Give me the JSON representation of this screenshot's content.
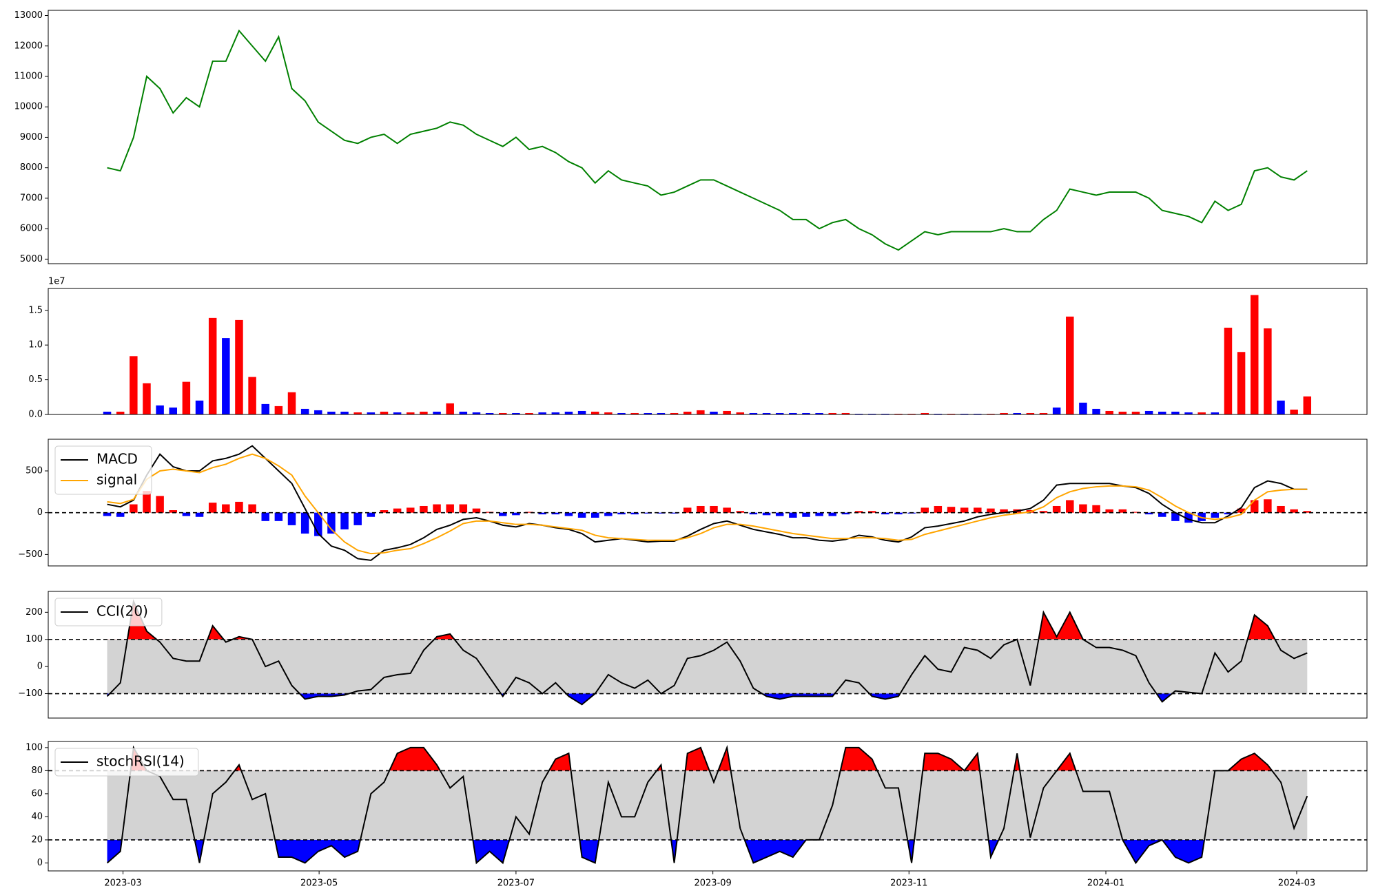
{
  "chart_data": [
    {
      "type": "line",
      "color": "green",
      "values": [
        8000,
        7900,
        9000,
        11000,
        10600,
        9800,
        10300,
        10000,
        11500,
        11500,
        12500,
        12000,
        11500,
        12300,
        10600,
        10200,
        9500,
        9200,
        8900,
        8800,
        9000,
        9100,
        8800,
        9100,
        9200,
        9300,
        9500,
        9400,
        9100,
        8900,
        8700,
        9000,
        8600,
        8700,
        8500,
        8200,
        8000,
        7500,
        7900,
        7600,
        7500,
        7400,
        7100,
        7200,
        7400,
        7600,
        7600,
        7400,
        7200,
        7000,
        6800,
        6600,
        6300,
        6300,
        6000,
        6200,
        6300,
        6000,
        5800,
        5500,
        5300,
        5600,
        5900,
        5800,
        5900,
        5900,
        5900,
        5900,
        6000,
        5900,
        5900,
        6300,
        6600,
        7300,
        7200,
        7100,
        7200,
        7200,
        7200,
        7000,
        6600,
        6500,
        6400,
        6200,
        6900,
        6600,
        6800,
        7900,
        8000,
        7700,
        7600,
        7900
      ],
      "xlim": [
        -4.47,
        95.53
      ],
      "ylim": [
        4850,
        13170
      ],
      "yticks": [
        5000,
        6000,
        7000,
        8000,
        9000,
        10000,
        11000,
        12000,
        13000
      ]
    },
    {
      "type": "bar",
      "offset_text": "1e7",
      "values": [
        0.04,
        0.04,
        0.84,
        0.45,
        0.13,
        0.1,
        0.47,
        0.2,
        1.39,
        1.1,
        1.36,
        0.54,
        0.15,
        0.12,
        0.32,
        0.08,
        0.06,
        0.04,
        0.04,
        0.03,
        0.03,
        0.04,
        0.03,
        0.03,
        0.04,
        0.04,
        0.16,
        0.04,
        0.03,
        0.02,
        0.02,
        0.02,
        0.02,
        0.03,
        0.03,
        0.04,
        0.05,
        0.04,
        0.03,
        0.02,
        0.02,
        0.02,
        0.02,
        0.02,
        0.04,
        0.06,
        0.04,
        0.05,
        0.03,
        0.02,
        0.02,
        0.02,
        0.02,
        0.02,
        0.02,
        0.02,
        0.02,
        0.01,
        0.01,
        0.01,
        0.01,
        0.01,
        0.02,
        0.01,
        0.01,
        0.01,
        0.01,
        0.01,
        0.02,
        0.02,
        0.02,
        0.02,
        0.1,
        1.41,
        0.17,
        0.08,
        0.05,
        0.04,
        0.04,
        0.05,
        0.04,
        0.04,
        0.03,
        0.03,
        0.03,
        1.25,
        0.9,
        1.72,
        1.24,
        0.2,
        0.07,
        0.26
      ],
      "colors": [
        "blue",
        "red",
        "red",
        "red",
        "blue",
        "blue",
        "red",
        "blue",
        "red",
        "blue",
        "red",
        "red",
        "blue",
        "red",
        "red",
        "blue",
        "blue",
        "blue",
        "blue",
        "red",
        "blue",
        "red",
        "blue",
        "red",
        "red",
        "blue",
        "red",
        "blue",
        "blue",
        "blue",
        "red",
        "blue",
        "red",
        "blue",
        "blue",
        "blue",
        "blue",
        "red",
        "red",
        "blue",
        "red",
        "blue",
        "blue",
        "red",
        "red",
        "red",
        "blue",
        "red",
        "red",
        "blue",
        "blue",
        "blue",
        "blue",
        "blue",
        "blue",
        "red",
        "red",
        "blue",
        "blue",
        "blue",
        "red",
        "red",
        "red",
        "blue",
        "red",
        "blue",
        "blue",
        "red",
        "red",
        "blue",
        "red",
        "red",
        "blue",
        "red",
        "blue",
        "blue",
        "red",
        "red",
        "red",
        "blue",
        "blue",
        "blue",
        "blue",
        "red",
        "blue",
        "red",
        "red",
        "red",
        "red",
        "blue",
        "red",
        "red"
      ],
      "xlim": [
        -4.47,
        95.53
      ],
      "ylim": [
        0,
        1.815
      ],
      "yticks": [
        {
          "value": 0,
          "label": "0.0"
        },
        {
          "value": 0.5,
          "label": "0.5"
        },
        {
          "value": 1,
          "label": "1.0"
        },
        {
          "value": 1.5,
          "label": "1.5"
        }
      ]
    },
    {
      "type": "macd",
      "legend": "upper left",
      "zero_line": true,
      "series": [
        {
          "name": "MACD",
          "color": "black",
          "values": [
            100,
            70,
            150,
            450,
            700,
            550,
            500,
            500,
            620,
            650,
            700,
            800,
            650,
            500,
            350,
            50,
            -250,
            -400,
            -450,
            -550,
            -570,
            -450,
            -420,
            -380,
            -300,
            -200,
            -150,
            -80,
            -60,
            -100,
            -150,
            -170,
            -130,
            -150,
            -180,
            -200,
            -250,
            -350,
            -330,
            -310,
            -330,
            -350,
            -340,
            -340,
            -280,
            -200,
            -130,
            -100,
            -150,
            -200,
            -230,
            -260,
            -300,
            -300,
            -330,
            -340,
            -320,
            -270,
            -290,
            -330,
            -350,
            -290,
            -180,
            -160,
            -130,
            -100,
            -50,
            -20,
            0,
            20,
            50,
            150,
            330,
            350,
            350,
            350,
            350,
            320,
            300,
            230,
            100,
            0,
            -80,
            -120,
            -120,
            -40,
            60,
            300,
            380,
            350,
            280,
            280
          ]
        },
        {
          "name": "signal",
          "color": "orange",
          "values": [
            130,
            110,
            160,
            400,
            500,
            520,
            500,
            480,
            540,
            580,
            650,
            700,
            650,
            560,
            450,
            200,
            0,
            -200,
            -350,
            -450,
            -490,
            -480,
            -450,
            -430,
            -370,
            -300,
            -220,
            -130,
            -100,
            -100,
            -120,
            -140,
            -140,
            -150,
            -170,
            -190,
            -210,
            -270,
            -300,
            -310,
            -320,
            -330,
            -330,
            -330,
            -300,
            -250,
            -180,
            -140,
            -140,
            -160,
            -190,
            -220,
            -250,
            -270,
            -290,
            -310,
            -310,
            -300,
            -300,
            -310,
            -330,
            -320,
            -260,
            -220,
            -180,
            -140,
            -100,
            -60,
            -30,
            -10,
            10,
            70,
            180,
            250,
            290,
            310,
            320,
            320,
            310,
            270,
            180,
            80,
            0,
            -60,
            -80,
            -60,
            -20,
            150,
            250,
            270,
            280,
            280
          ]
        }
      ],
      "histogram": {
        "up_color": "red",
        "down_color": "blue",
        "values": [
          -40,
          -50,
          100,
          260,
          200,
          30,
          -40,
          -50,
          120,
          100,
          130,
          100,
          -100,
          -100,
          -150,
          -250,
          -280,
          -250,
          -200,
          -150,
          -50,
          30,
          50,
          60,
          80,
          100,
          100,
          100,
          50,
          10,
          -40,
          -30,
          10,
          -20,
          -20,
          -40,
          -60,
          -60,
          -40,
          -20,
          -20,
          -10,
          -10,
          -10,
          60,
          80,
          80,
          60,
          20,
          -20,
          -30,
          -40,
          -60,
          -50,
          -40,
          -40,
          -20,
          20,
          20,
          -20,
          -20,
          -10,
          60,
          80,
          70,
          60,
          60,
          50,
          40,
          40,
          30,
          20,
          80,
          150,
          100,
          90,
          40,
          40,
          10,
          -20,
          -50,
          -100,
          -120,
          -100,
          -60,
          -20,
          50,
          150,
          160,
          80,
          40,
          20
        ]
      },
      "xlim": [
        -4.47,
        95.53
      ],
      "ylim": [
        -637,
        879
      ],
      "yticks": [
        {
          "value": -500,
          "label": "−500"
        },
        0,
        500
      ]
    },
    {
      "type": "oscillator",
      "legend": "upper left",
      "upper": 100,
      "lower": -100,
      "upper_color": "red",
      "lower_color": "blue",
      "band_color": "lightgray",
      "series": [
        {
          "name": "CCI(20)",
          "color": "black",
          "values": [
            -110,
            -60,
            240,
            130,
            90,
            30,
            20,
            20,
            150,
            90,
            110,
            100,
            0,
            20,
            -70,
            -120,
            -110,
            -110,
            -105,
            -90,
            -85,
            -40,
            -30,
            -25,
            60,
            110,
            120,
            60,
            30,
            -40,
            -110,
            -40,
            -60,
            -100,
            -60,
            -110,
            -140,
            -100,
            -30,
            -60,
            -80,
            -50,
            -100,
            -70,
            30,
            40,
            60,
            90,
            20,
            -80,
            -110,
            -120,
            -110,
            -110,
            -110,
            -110,
            -50,
            -60,
            -110,
            -120,
            -110,
            -30,
            40,
            -10,
            -20,
            70,
            60,
            30,
            80,
            100,
            -70,
            200,
            110,
            200,
            100,
            70,
            70,
            60,
            40,
            -60,
            -130,
            -90,
            -95,
            -100,
            50,
            -20,
            20,
            190,
            150,
            60,
            30,
            50
          ]
        }
      ],
      "xlim": [
        -4.47,
        95.53
      ],
      "ylim": [
        -190,
        277
      ],
      "yticks": [
        {
          "value": -100,
          "label": "−100"
        },
        0,
        100,
        200
      ]
    },
    {
      "type": "oscillator",
      "legend": "upper left",
      "upper": 80,
      "lower": 20,
      "upper_color": "red",
      "lower_color": "blue",
      "band_color": "lightgray",
      "series": [
        {
          "name": "stochRSI(14)",
          "color": "black",
          "values": [
            0,
            10,
            100,
            80,
            75,
            55,
            55,
            0,
            60,
            70,
            85,
            55,
            60,
            5,
            5,
            0,
            10,
            15,
            5,
            10,
            60,
            70,
            95,
            100,
            100,
            85,
            65,
            75,
            0,
            10,
            0,
            40,
            25,
            70,
            90,
            95,
            5,
            0,
            70,
            40,
            40,
            70,
            85,
            0,
            95,
            100,
            70,
            100,
            30,
            0,
            5,
            10,
            5,
            20,
            20,
            50,
            100,
            100,
            90,
            65,
            65,
            0,
            95,
            95,
            90,
            80,
            95,
            5,
            30,
            95,
            22,
            65,
            80,
            95,
            62,
            62,
            62,
            20,
            0,
            15,
            20,
            5,
            0,
            5,
            80,
            80,
            90,
            95,
            85,
            70,
            30,
            58
          ]
        }
      ],
      "xlim": [
        -4.47,
        95.53
      ],
      "ylim": [
        -6.9,
        105.3
      ],
      "yticks": [
        0,
        20,
        40,
        60,
        80,
        100
      ],
      "xticks": [
        {
          "value": 1.2,
          "label": "2023-03"
        },
        {
          "value": 16.07,
          "label": "2023-05"
        },
        {
          "value": 31,
          "label": "2023-07"
        },
        {
          "value": 45.93,
          "label": "2023-09"
        },
        {
          "value": 60.8,
          "label": "2023-11"
        },
        {
          "value": 75.73,
          "label": "2024-01"
        },
        {
          "value": 90.2,
          "label": "2024-03"
        }
      ]
    }
  ]
}
